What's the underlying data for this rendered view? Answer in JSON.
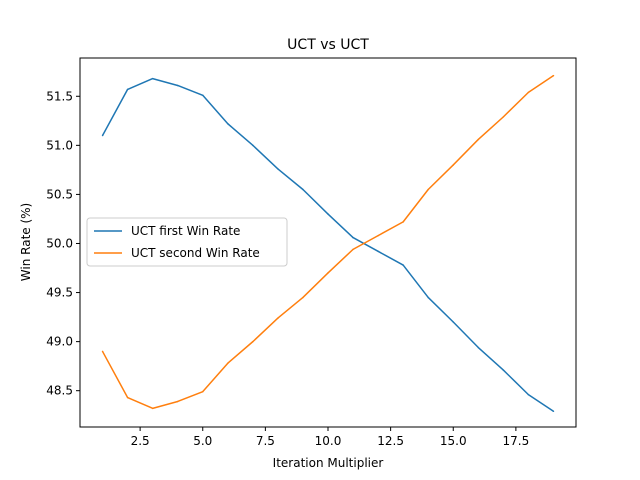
{
  "chart_data": {
    "type": "line",
    "title": "UCT vs UCT",
    "xlabel": "Iteration Multiplier",
    "ylabel": "Win Rate (%)",
    "xlim": [
      0.1,
      19.9
    ],
    "ylim": [
      48.13,
      51.89
    ],
    "xticks": [
      2.5,
      5.0,
      7.5,
      10.0,
      12.5,
      15.0,
      17.5
    ],
    "xtick_labels": [
      "2.5",
      "5.0",
      "7.5",
      "10.0",
      "12.5",
      "15.0",
      "17.5"
    ],
    "yticks": [
      48.5,
      49.0,
      49.5,
      50.0,
      50.5,
      51.0,
      51.5
    ],
    "ytick_labels": [
      "48.5",
      "49.0",
      "49.5",
      "50.0",
      "50.5",
      "51.0",
      "51.5"
    ],
    "grid": false,
    "legend_position": "center-left",
    "x": [
      1,
      2,
      3,
      4,
      5,
      6,
      7,
      8,
      9,
      10,
      11,
      12,
      13,
      14,
      15,
      16,
      17,
      18,
      19
    ],
    "series": [
      {
        "name": "UCT first Win Rate",
        "color": "#1f77b4",
        "values": [
          51.1,
          51.57,
          51.68,
          51.61,
          51.51,
          51.22,
          51.0,
          50.76,
          50.55,
          50.3,
          50.06,
          49.92,
          49.78,
          49.45,
          49.2,
          48.94,
          48.71,
          48.46,
          48.29
        ]
      },
      {
        "name": "UCT second Win Rate",
        "color": "#ff7f0e",
        "values": [
          48.9,
          48.43,
          48.32,
          48.39,
          48.49,
          48.78,
          49.0,
          49.24,
          49.45,
          49.7,
          49.94,
          50.08,
          50.22,
          50.55,
          50.8,
          51.06,
          51.29,
          51.54,
          51.71
        ]
      }
    ]
  }
}
